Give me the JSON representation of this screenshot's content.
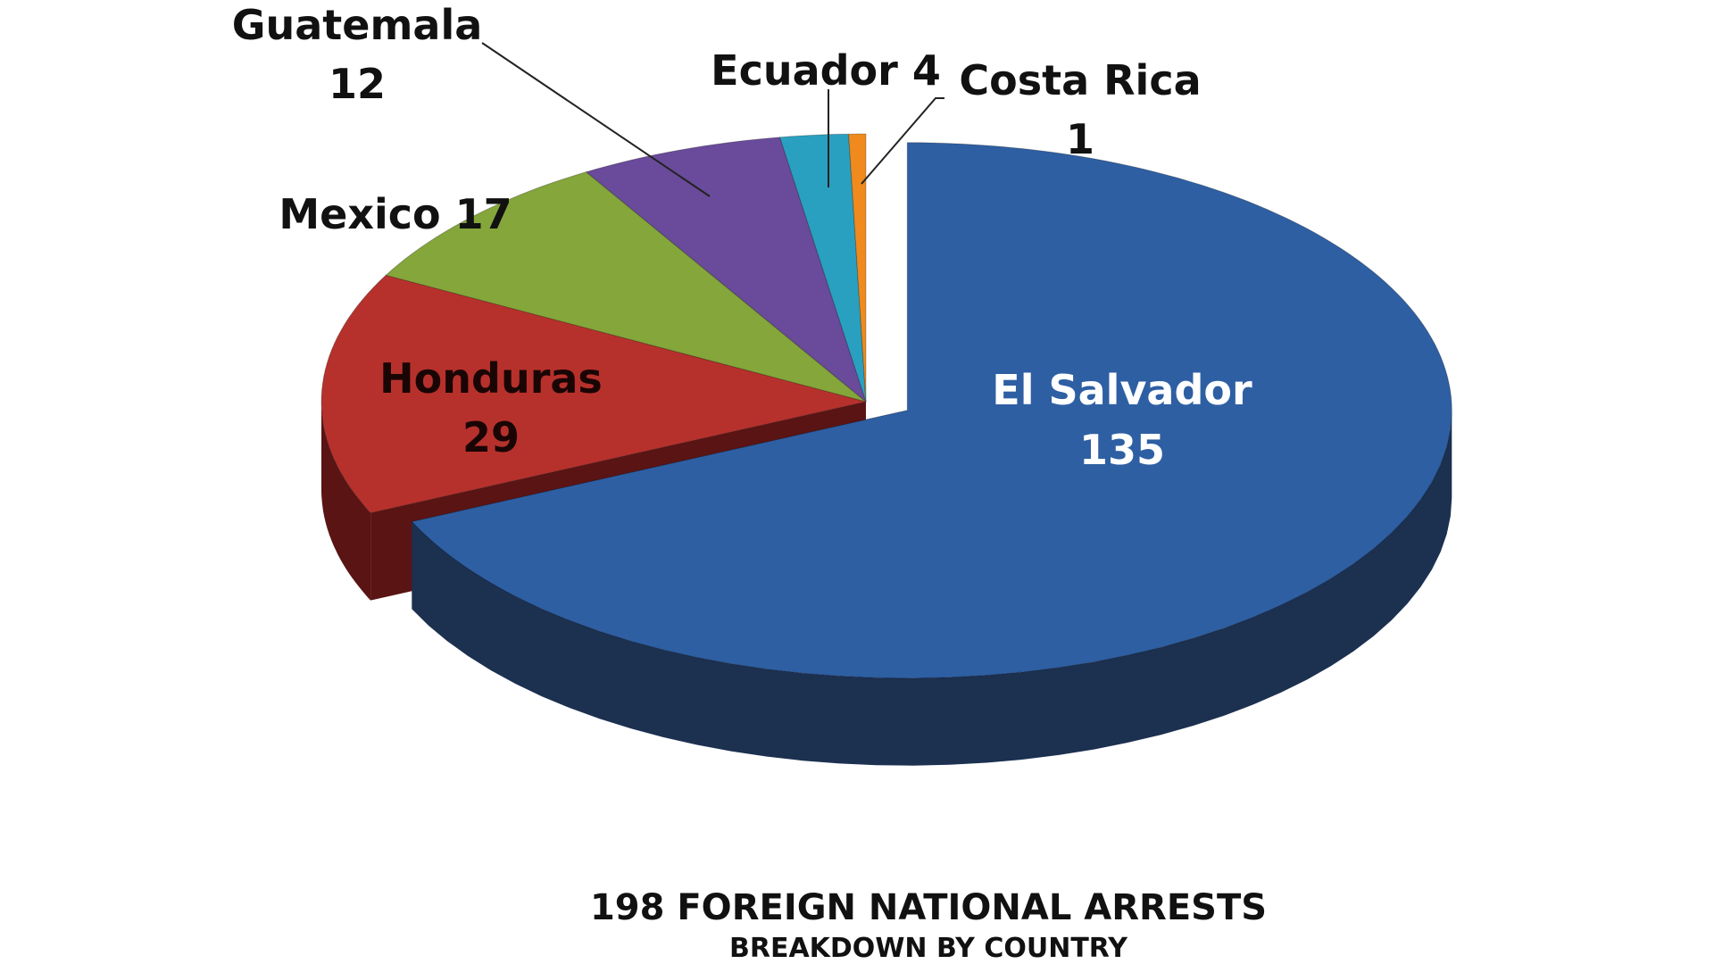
{
  "chart_data": {
    "type": "pie",
    "title": "198 FOREIGN NATIONAL ARRESTS",
    "subtitle": "BREAKDOWN BY COUNTRY",
    "total": 198,
    "slices": [
      {
        "label": "El Salvador",
        "value": 135,
        "color": "#2e5fa3",
        "side_color": "#1c3050"
      },
      {
        "label": "Honduras",
        "value": 29,
        "color": "#b7312c",
        "side_color": "#5a1414"
      },
      {
        "label": "Mexico",
        "value": 17,
        "color": "#84a63a",
        "side_color": "#4f6622"
      },
      {
        "label": "Guatemala",
        "value": 12,
        "color": "#6a4a9a",
        "side_color": "#3c2a58"
      },
      {
        "label": "Ecuador",
        "value": 4,
        "color": "#2aa0c0",
        "side_color": "#186074"
      },
      {
        "label": "Costa Rica",
        "value": 1,
        "color": "#f08a1e",
        "side_color": "#8a4e10"
      }
    ],
    "labels": {
      "el_salvador_name": "El Salvador",
      "el_salvador_value": "135",
      "honduras_name": "Honduras",
      "honduras_value": "29",
      "mexico": "Mexico 17",
      "guatemala_name": "Guatemala",
      "guatemala_value": "12",
      "ecuador": "Ecuador 4",
      "costa_rica_name": "Costa Rica",
      "costa_rica_value": "1"
    },
    "three_d": true,
    "legend": "none"
  }
}
